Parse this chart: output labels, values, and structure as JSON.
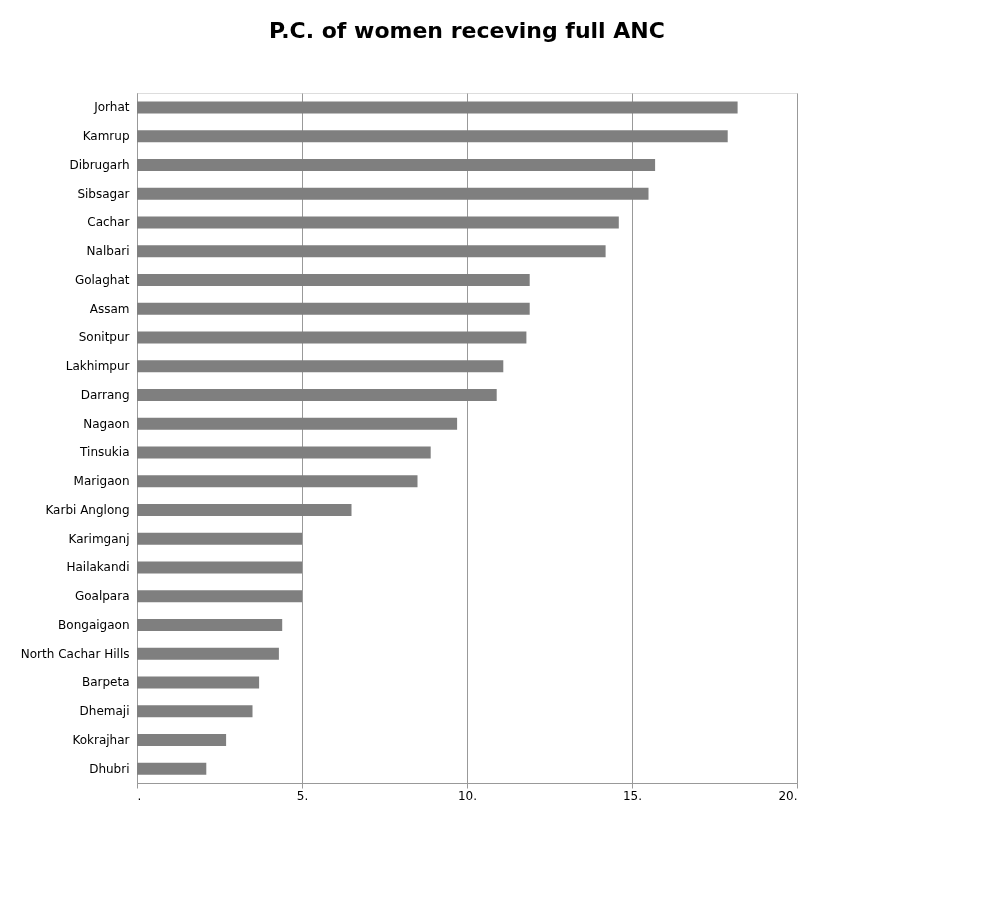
{
  "chart_data": {
    "type": "bar",
    "orientation": "horizontal",
    "title": "P.C. of women receving full ANC",
    "categories": [
      "Jorhat",
      "Kamrup",
      "Dibrugarh",
      "Sibsagar",
      "Cachar",
      "Nalbari",
      "Golaghat",
      "Assam",
      "Sonitpur",
      "Lakhimpur",
      "Darrang",
      "Nagaon",
      "Tinsukia",
      "Marigaon",
      "Karbi Anglong",
      "Karimganj",
      "Hailakandi",
      "Goalpara",
      "Bongaigaon",
      "North Cachar Hills",
      "Barpeta",
      "Dhemaji",
      "Kokrajhar",
      "Dhubri"
    ],
    "values": [
      18.2,
      17.9,
      15.7,
      15.5,
      14.6,
      14.2,
      11.9,
      11.9,
      11.8,
      11.1,
      10.9,
      9.7,
      8.9,
      8.5,
      6.5,
      5.0,
      5.0,
      5.0,
      4.4,
      4.3,
      3.7,
      3.5,
      2.7,
      2.1
    ],
    "color": "#7f7f7f",
    "xlim": [
      0,
      20
    ],
    "xticks": [
      {
        "value": 0,
        "label": "."
      },
      {
        "value": 5,
        "label": "5."
      },
      {
        "value": 10,
        "label": "10."
      },
      {
        "value": 15,
        "label": "15."
      },
      {
        "value": 20,
        "label": "20."
      }
    ],
    "grid": "x"
  }
}
